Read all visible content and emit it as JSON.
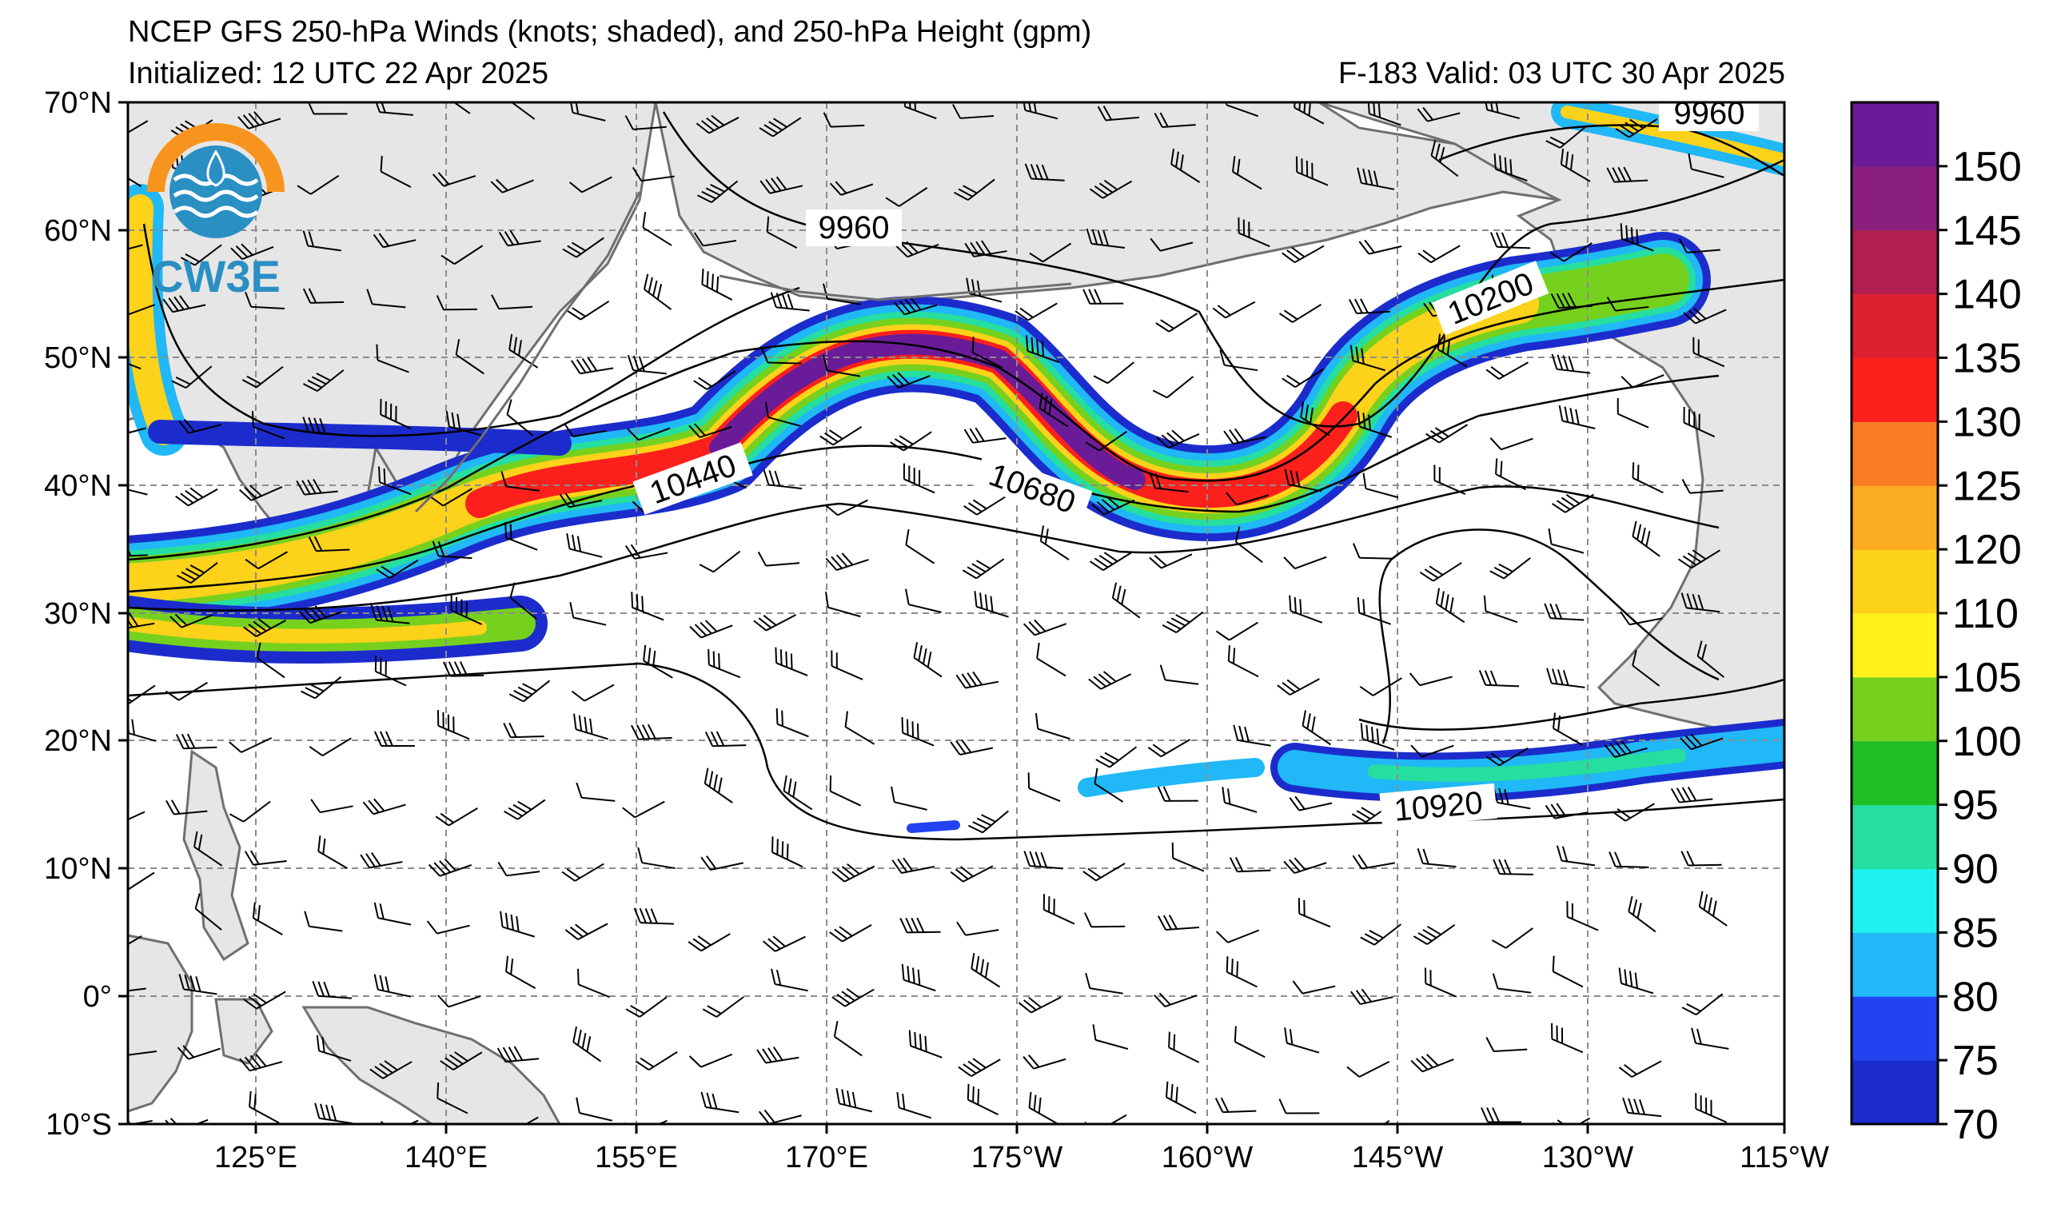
{
  "header": {
    "title": "NCEP GFS 250-hPa Winds (knots; shaded), and 250-hPa Height (gpm)",
    "initialized": "Initialized: 12 UTC 22 Apr 2025",
    "valid": "F-183  Valid: 03 UTC 30 Apr 2025"
  },
  "logo": {
    "text": "CW3E"
  },
  "axes": {
    "lat_labels": [
      "70°N",
      "60°N",
      "50°N",
      "40°N",
      "30°N",
      "20°N",
      "10°N",
      "0°",
      "10°S"
    ],
    "lon_labels": [
      "125°E",
      "140°E",
      "155°E",
      "170°E",
      "175°W",
      "160°W",
      "145°W",
      "130°W",
      "115°W"
    ]
  },
  "contours": {
    "labels": [
      "9960",
      "9960",
      "9960",
      "10200",
      "10440",
      "10680",
      "10920"
    ]
  },
  "colorbar": {
    "levels": [
      "70",
      "75",
      "80",
      "85",
      "90",
      "95",
      "100",
      "105",
      "110",
      "120",
      "125",
      "130",
      "135",
      "140",
      "145",
      "150"
    ],
    "colors": [
      "#1c2ccc",
      "#2343f0",
      "#20b8f6",
      "#1ef2f0",
      "#25dea0",
      "#1fbf26",
      "#76d11e",
      "#fff21b",
      "#fdd21a",
      "#fbab1f",
      "#f87d22",
      "#fb201c",
      "#dd2030",
      "#b01f4d",
      "#8b1f7e",
      "#6a1c98"
    ]
  },
  "colors": {
    "land": "#e6e6e6",
    "coast": "#6f6f6f",
    "grid": "#8c8c8c",
    "logo_orange": "#f7941d",
    "logo_blue": "#2a8fc3"
  }
}
